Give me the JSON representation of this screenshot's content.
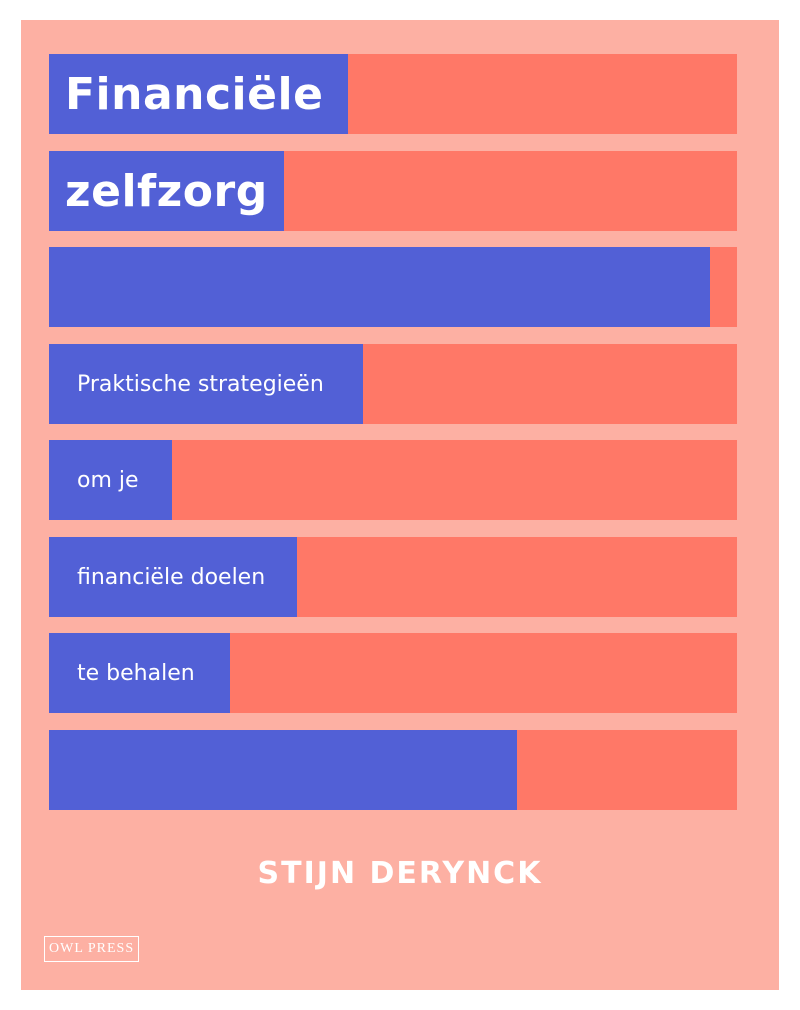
{
  "cover": {
    "background": "#fdb0a3",
    "bar_color": "#ff7867",
    "fill_color": "#5260d6"
  },
  "bars": [
    {
      "text": "Financiële",
      "fill": 0.434,
      "style": "title"
    },
    {
      "text": "zelfzorg",
      "fill": 0.341,
      "style": "title"
    },
    {
      "text": "",
      "fill": 0.961,
      "style": "none"
    },
    {
      "text": "Praktische strategieën",
      "fill": 0.456,
      "style": "sub"
    },
    {
      "text": "om je",
      "fill": 0.179,
      "style": "sub"
    },
    {
      "text": "financiële doelen",
      "fill": 0.36,
      "style": "sub"
    },
    {
      "text": "te behalen",
      "fill": 0.263,
      "style": "sub"
    },
    {
      "text": "",
      "fill": 0.68,
      "style": "none"
    }
  ],
  "author": "STIJN DERYNCK",
  "publisher": "OWL PRESS"
}
